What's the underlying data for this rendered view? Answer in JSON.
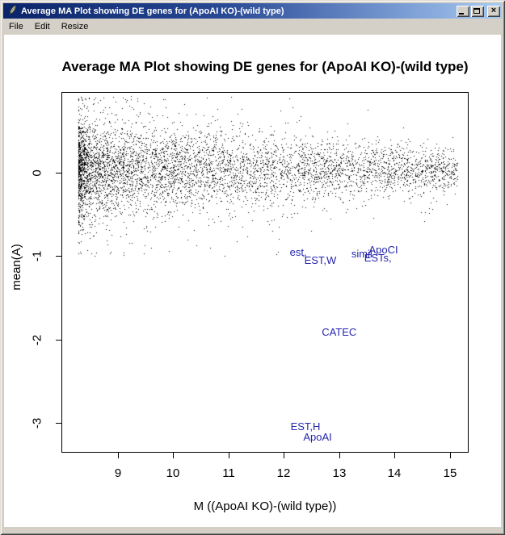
{
  "window": {
    "title": "Average MA Plot showing DE genes for (ApoAI KO)-(wild type)",
    "controls": {
      "minimize": "Minimize",
      "maximize": "Maximize",
      "close": "Close"
    }
  },
  "menu": {
    "items": [
      "File",
      "Edit",
      "Resize"
    ]
  },
  "colors": {
    "titlebar_gradient_start": "#0a246a",
    "titlebar_gradient_end": "#a6caf0",
    "window_chrome": "#d4d0c8",
    "plot_background": "#ffffff",
    "point_color": "#000000",
    "gene_label_color": "#2525ae"
  },
  "chart_data": {
    "type": "scatter",
    "title": "Average MA Plot showing DE genes for (ApoAI KO)-(wild type)",
    "xlabel": "M ((ApoAI KO)-(wild type))",
    "ylabel": "mean(A)",
    "xlim": [
      7.98,
      15.34
    ],
    "ylim": [
      -3.36,
      0.97
    ],
    "x_ticks": [
      9,
      10,
      11,
      12,
      13,
      14,
      15
    ],
    "y_ticks": [
      0,
      -1,
      -2,
      -3
    ],
    "grid": false,
    "legend": null,
    "de_gene_labels": [
      {
        "text": "est,",
        "x": 12.26,
        "y": -0.96
      },
      {
        "text": "EST,W",
        "x": 12.66,
        "y": -1.05
      },
      {
        "text": "simil",
        "x": 13.41,
        "y": -0.98
      },
      {
        "text": "ApoCI",
        "x": 13.8,
        "y": -0.93
      },
      {
        "text": "ESTs,",
        "x": 13.7,
        "y": -1.03
      },
      {
        "text": "CATEC",
        "x": 13.0,
        "y": -1.92
      },
      {
        "text": "EST,H",
        "x": 12.39,
        "y": -3.05
      },
      {
        "text": "ApoAI",
        "x": 12.61,
        "y": -3.18
      }
    ],
    "point_cloud": {
      "description": "Dense unlabeled gene cloud centered near mean(A)=0; density and vertical spread decrease as M increases from ~8.3 to ~15.1",
      "count": 5600,
      "seed": 1234,
      "x_min": 8.28,
      "x_span": 6.85,
      "x_skew": 1.85,
      "y_mean": 0.04,
      "y_sd_at_xmin": 0.3,
      "y_sd_slope": -0.026,
      "outlier_prob": 0.1,
      "outlier_scale": 2.0,
      "y_clamp": [
        -1.0,
        0.92
      ]
    }
  }
}
